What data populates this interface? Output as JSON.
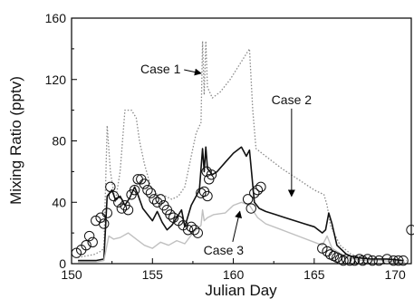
{
  "chart_data": {
    "type": "line",
    "xlabel": "Julian Day",
    "ylabel": "Mixing Ratio (pptv)",
    "xlim": [
      150,
      171
    ],
    "ylim": [
      0,
      160
    ],
    "xticks": [
      150,
      155,
      160,
      165,
      170
    ],
    "yticks": [
      0,
      40,
      80,
      120,
      160
    ],
    "grid": false,
    "series": [
      {
        "name": "Case 1",
        "style": "dotted",
        "color": "#8a8a8a",
        "points": [
          [
            150.4,
            4
          ],
          [
            151.4,
            6
          ],
          [
            151.8,
            8
          ],
          [
            152.0,
            10
          ],
          [
            152.2,
            90
          ],
          [
            152.4,
            60
          ],
          [
            152.7,
            40
          ],
          [
            153.0,
            60
          ],
          [
            153.3,
            100
          ],
          [
            153.7,
            100
          ],
          [
            154.0,
            95
          ],
          [
            154.2,
            80
          ],
          [
            154.5,
            65
          ],
          [
            154.9,
            50
          ],
          [
            155.3,
            45
          ],
          [
            155.8,
            44
          ],
          [
            156.2,
            42
          ],
          [
            156.6,
            44
          ],
          [
            157.0,
            50
          ],
          [
            157.4,
            70
          ],
          [
            157.7,
            85
          ],
          [
            158.0,
            92
          ],
          [
            158.1,
            145
          ],
          [
            158.2,
            110
          ],
          [
            158.3,
            145
          ],
          [
            158.4,
            115
          ],
          [
            158.7,
            108
          ],
          [
            159.2,
            112
          ],
          [
            159.8,
            120
          ],
          [
            160.4,
            130
          ],
          [
            161.0,
            140
          ],
          [
            161.2,
            100
          ],
          [
            161.4,
            75
          ],
          [
            162.0,
            70
          ],
          [
            163.0,
            62
          ],
          [
            164.0,
            55
          ],
          [
            165.0,
            48
          ],
          [
            165.6,
            45
          ],
          [
            165.8,
            38
          ],
          [
            166.0,
            25
          ],
          [
            166.6,
            12
          ],
          [
            167.3,
            6
          ],
          [
            168.0,
            4
          ],
          [
            169.0,
            3
          ],
          [
            170.0,
            3
          ],
          [
            170.7,
            2
          ]
        ]
      },
      {
        "name": "Case 2",
        "style": "solid",
        "color": "#111111",
        "points": [
          [
            150.4,
            2
          ],
          [
            151.5,
            2
          ],
          [
            152.0,
            3
          ],
          [
            152.2,
            44
          ],
          [
            152.5,
            48
          ],
          [
            152.7,
            42
          ],
          [
            153.0,
            44
          ],
          [
            153.3,
            38
          ],
          [
            153.6,
            43
          ],
          [
            153.9,
            50
          ],
          [
            154.1,
            45
          ],
          [
            154.4,
            36
          ],
          [
            154.7,
            32
          ],
          [
            155.0,
            28
          ],
          [
            155.3,
            34
          ],
          [
            155.6,
            27
          ],
          [
            155.9,
            22
          ],
          [
            156.2,
            25
          ],
          [
            156.5,
            30
          ],
          [
            156.8,
            35
          ],
          [
            157.0,
            24
          ],
          [
            157.4,
            38
          ],
          [
            157.7,
            44
          ],
          [
            157.9,
            48
          ],
          [
            158.1,
            75
          ],
          [
            158.2,
            60
          ],
          [
            158.3,
            76
          ],
          [
            158.4,
            62
          ],
          [
            158.7,
            58
          ],
          [
            159.0,
            60
          ],
          [
            159.5,
            66
          ],
          [
            160.0,
            72
          ],
          [
            160.5,
            76
          ],
          [
            160.8,
            70
          ],
          [
            161.0,
            74
          ],
          [
            161.3,
            40
          ],
          [
            161.6,
            36
          ],
          [
            162.0,
            34
          ],
          [
            162.6,
            32
          ],
          [
            163.2,
            30
          ],
          [
            163.8,
            28
          ],
          [
            164.4,
            26
          ],
          [
            165.0,
            24
          ],
          [
            165.5,
            20
          ],
          [
            165.7,
            22
          ],
          [
            165.9,
            33
          ],
          [
            166.1,
            26
          ],
          [
            166.4,
            12
          ],
          [
            167.0,
            6
          ],
          [
            167.5,
            4
          ],
          [
            168.5,
            3
          ],
          [
            169.5,
            3
          ],
          [
            170.5,
            2
          ]
        ]
      },
      {
        "name": "Case 3",
        "style": "solid",
        "color": "#c0c0c0",
        "points": [
          [
            150.4,
            1
          ],
          [
            151.5,
            1
          ],
          [
            152.0,
            2
          ],
          [
            152.3,
            18
          ],
          [
            152.6,
            16
          ],
          [
            153.0,
            17
          ],
          [
            153.5,
            20
          ],
          [
            154.0,
            16
          ],
          [
            154.5,
            12
          ],
          [
            155.0,
            10
          ],
          [
            155.5,
            14
          ],
          [
            156.0,
            12
          ],
          [
            156.5,
            15
          ],
          [
            157.0,
            13
          ],
          [
            157.5,
            20
          ],
          [
            158.0,
            25
          ],
          [
            158.1,
            35
          ],
          [
            158.2,
            28
          ],
          [
            158.4,
            30
          ],
          [
            158.8,
            32
          ],
          [
            159.5,
            33
          ],
          [
            160.0,
            38
          ],
          [
            160.5,
            40
          ],
          [
            161.0,
            38
          ],
          [
            161.5,
            30
          ],
          [
            162.0,
            26
          ],
          [
            163.0,
            22
          ],
          [
            164.0,
            18
          ],
          [
            165.0,
            14
          ],
          [
            165.5,
            12
          ],
          [
            165.8,
            18
          ],
          [
            166.1,
            10
          ],
          [
            167.0,
            4
          ],
          [
            168.0,
            2
          ],
          [
            169.0,
            2
          ],
          [
            170.6,
            1
          ]
        ]
      },
      {
        "name": "",
        "style": "markers",
        "color": "#111111",
        "points": [
          [
            150.3,
            7
          ],
          [
            150.6,
            9
          ],
          [
            150.9,
            12
          ],
          [
            151.1,
            18
          ],
          [
            151.3,
            14
          ],
          [
            151.5,
            28
          ],
          [
            151.8,
            30
          ],
          [
            152.0,
            26
          ],
          [
            152.2,
            33
          ],
          [
            152.4,
            50
          ],
          [
            152.6,
            44
          ],
          [
            152.9,
            40
          ],
          [
            153.1,
            36
          ],
          [
            153.3,
            38
          ],
          [
            153.5,
            35
          ],
          [
            153.7,
            45
          ],
          [
            153.9,
            48
          ],
          [
            154.1,
            55
          ],
          [
            154.3,
            55
          ],
          [
            154.5,
            52
          ],
          [
            154.7,
            48
          ],
          [
            154.9,
            46
          ],
          [
            155.1,
            42
          ],
          [
            155.3,
            40
          ],
          [
            155.5,
            42
          ],
          [
            155.7,
            38
          ],
          [
            155.9,
            35
          ],
          [
            156.1,
            32
          ],
          [
            156.3,
            30
          ],
          [
            156.6,
            28
          ],
          [
            156.9,
            25
          ],
          [
            157.2,
            22
          ],
          [
            157.4,
            24
          ],
          [
            157.6,
            22
          ],
          [
            157.8,
            20
          ],
          [
            158.0,
            46
          ],
          [
            158.2,
            47
          ],
          [
            158.35,
            60
          ],
          [
            158.5,
            55
          ],
          [
            158.65,
            58
          ],
          [
            158.4,
            44
          ],
          [
            160.9,
            42
          ],
          [
            161.1,
            36
          ],
          [
            161.3,
            46
          ],
          [
            161.5,
            48
          ],
          [
            161.7,
            50
          ],
          [
            165.5,
            10
          ],
          [
            165.8,
            8
          ],
          [
            166.0,
            6
          ],
          [
            166.2,
            5
          ],
          [
            166.4,
            4
          ],
          [
            166.6,
            3
          ],
          [
            166.8,
            2
          ],
          [
            167.0,
            3
          ],
          [
            167.2,
            2
          ],
          [
            167.5,
            2
          ],
          [
            167.8,
            3
          ],
          [
            168.0,
            2
          ],
          [
            168.3,
            3
          ],
          [
            168.6,
            2
          ],
          [
            169.0,
            2
          ],
          [
            169.5,
            3
          ],
          [
            169.9,
            2
          ],
          [
            170.2,
            2
          ],
          [
            170.5,
            2
          ],
          [
            171.0,
            22
          ]
        ]
      }
    ],
    "annotations": [
      {
        "text": "Case 1",
        "at": [
          155.5,
          124
        ],
        "arrow_to": [
          158.0,
          124
        ]
      },
      {
        "text": "Case 2",
        "at": [
          163.6,
          104
        ],
        "arrow_to": [
          163.6,
          44
        ]
      },
      {
        "text": "Case 3",
        "at": [
          159.4,
          6
        ],
        "arrow_to": [
          160.4,
          34
        ]
      }
    ]
  }
}
